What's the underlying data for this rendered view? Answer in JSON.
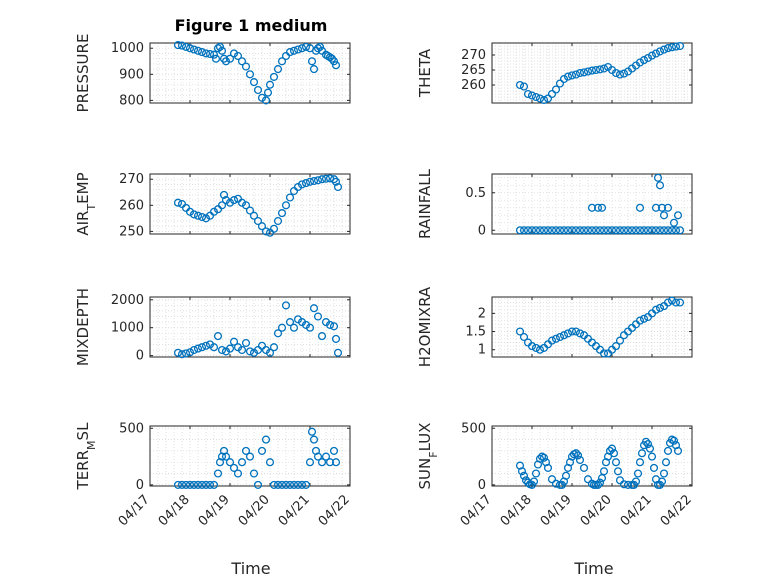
{
  "figure": {
    "title": "Figure 1 medium",
    "marker_color": "#0072BD",
    "xticks": [
      "04/17",
      "04/18",
      "04/19",
      "04/20",
      "04/21",
      "04/22"
    ],
    "xlabel": "Time"
  },
  "chart_data": [
    {
      "type": "scatter",
      "ylabel": "PRESSURE",
      "title": "Figure 1 medium",
      "ylim": [
        790,
        1020
      ],
      "yticks": [
        800,
        900,
        1000
      ],
      "xlim": [
        0,
        5
      ],
      "grid": true,
      "x": [
        0.7,
        0.8,
        0.9,
        1.0,
        1.1,
        1.2,
        1.3,
        1.4,
        1.5,
        1.6,
        1.65,
        1.7,
        1.75,
        1.8,
        1.85,
        1.9,
        2.0,
        2.1,
        2.2,
        2.3,
        2.4,
        2.5,
        2.6,
        2.7,
        2.8,
        2.9,
        2.95,
        3.0,
        3.1,
        3.2,
        3.3,
        3.4,
        3.5,
        3.6,
        3.7,
        3.8,
        3.9,
        4.0,
        4.05,
        4.1,
        4.15,
        4.2,
        4.25,
        4.3,
        4.4,
        4.45,
        4.5,
        4.55,
        4.6,
        4.65
      ],
      "y": [
        1012,
        1010,
        1005,
        1000,
        995,
        990,
        985,
        980,
        978,
        975,
        960,
        1000,
        1005,
        990,
        960,
        950,
        960,
        980,
        970,
        950,
        930,
        900,
        870,
        840,
        810,
        800,
        830,
        860,
        890,
        920,
        950,
        970,
        985,
        990,
        995,
        1000,
        1005,
        1000,
        950,
        920,
        990,
        1000,
        1005,
        990,
        975,
        970,
        965,
        960,
        950,
        935
      ]
    },
    {
      "type": "scatter",
      "ylabel": "THETA",
      "ylim": [
        254,
        274
      ],
      "yticks": [
        260,
        265,
        270
      ],
      "xlim": [
        0,
        5
      ],
      "grid": true,
      "x": [
        0.7,
        0.8,
        0.9,
        1.0,
        1.1,
        1.2,
        1.3,
        1.4,
        1.5,
        1.6,
        1.7,
        1.8,
        1.9,
        2.0,
        2.1,
        2.2,
        2.3,
        2.4,
        2.5,
        2.6,
        2.7,
        2.8,
        2.9,
        3.0,
        3.1,
        3.2,
        3.3,
        3.4,
        3.5,
        3.6,
        3.7,
        3.8,
        3.9,
        4.0,
        4.1,
        4.2,
        4.3,
        4.4,
        4.5,
        4.6,
        4.7
      ],
      "y": [
        260,
        259.5,
        257,
        256.5,
        256,
        255.5,
        255,
        255.5,
        257,
        258.5,
        260.5,
        262,
        262.8,
        263.2,
        263.5,
        264,
        264.2,
        264.5,
        264.8,
        265,
        265.2,
        265.5,
        266,
        265,
        264,
        263.5,
        263.8,
        264.5,
        265.5,
        266.5,
        267.5,
        268.3,
        269,
        269.8,
        270.5,
        271.2,
        271.8,
        272.3,
        272.6,
        272.8,
        273
      ]
    },
    {
      "type": "scatter",
      "ylabel": "AIR_TEMP",
      "ylim": [
        249,
        272
      ],
      "yticks": [
        250,
        260,
        270
      ],
      "xlim": [
        0,
        5
      ],
      "grid": true,
      "x": [
        0.7,
        0.8,
        0.9,
        1.0,
        1.1,
        1.2,
        1.3,
        1.4,
        1.5,
        1.6,
        1.7,
        1.8,
        1.85,
        1.9,
        2.0,
        2.1,
        2.2,
        2.3,
        2.4,
        2.5,
        2.6,
        2.7,
        2.8,
        2.9,
        3.0,
        3.1,
        3.2,
        3.3,
        3.4,
        3.5,
        3.6,
        3.7,
        3.8,
        3.9,
        4.0,
        4.1,
        4.2,
        4.3,
        4.4,
        4.5,
        4.6,
        4.65,
        4.7
      ],
      "y": [
        261,
        260.5,
        259,
        257.5,
        256.5,
        256,
        255.5,
        255,
        256,
        257.5,
        258.5,
        260,
        264,
        262,
        261,
        262,
        262.5,
        261,
        260,
        258,
        256,
        254,
        252,
        250,
        249.5,
        251,
        254,
        257,
        260,
        263,
        265.5,
        267,
        268,
        268.5,
        269,
        269.3,
        269.6,
        270,
        270.2,
        270.3,
        270,
        269,
        267
      ]
    },
    {
      "type": "scatter",
      "ylabel": "RAINFALL",
      "ylim": [
        -0.05,
        0.75
      ],
      "yticks": [
        0,
        0.5
      ],
      "xlim": [
        0,
        5
      ],
      "grid": true,
      "x": [
        0.7,
        0.8,
        0.9,
        1.0,
        1.1,
        1.2,
        1.3,
        1.4,
        1.5,
        1.6,
        1.7,
        1.8,
        1.9,
        2.0,
        2.1,
        2.2,
        2.3,
        2.4,
        2.5,
        2.6,
        2.7,
        2.8,
        2.9,
        3.0,
        3.1,
        3.2,
        3.3,
        3.4,
        3.5,
        3.6,
        3.7,
        3.8,
        3.9,
        4.0,
        4.1,
        4.2,
        4.3,
        4.4,
        4.5,
        4.6,
        4.7,
        2.5,
        2.65,
        2.75,
        3.7,
        4.1,
        4.15,
        4.2,
        4.25,
        4.3,
        4.4,
        4.55,
        4.65
      ],
      "y": [
        0,
        0,
        0,
        0,
        0,
        0,
        0,
        0,
        0,
        0,
        0,
        0,
        0,
        0,
        0,
        0,
        0,
        0,
        0,
        0,
        0,
        0,
        0,
        0,
        0,
        0,
        0,
        0,
        0,
        0,
        0,
        0,
        0,
        0,
        0,
        0,
        0,
        0,
        0,
        0,
        0,
        0.3,
        0.3,
        0.3,
        0.3,
        0.3,
        0.7,
        0.6,
        0.3,
        0.2,
        0.3,
        0.1,
        0.2
      ]
    },
    {
      "type": "scatter",
      "ylabel": "MIXDEPTH",
      "ylim": [
        -50,
        2100
      ],
      "yticks": [
        0,
        1000,
        2000
      ],
      "xlim": [
        0,
        5
      ],
      "grid": true,
      "x": [
        0.7,
        0.8,
        0.9,
        1.0,
        1.1,
        1.2,
        1.3,
        1.4,
        1.5,
        1.6,
        1.7,
        1.8,
        1.9,
        2.0,
        2.1,
        2.2,
        2.3,
        2.4,
        2.5,
        2.6,
        2.7,
        2.8,
        2.9,
        3.0,
        3.1,
        3.2,
        3.3,
        3.4,
        3.5,
        3.6,
        3.7,
        3.8,
        3.9,
        4.0,
        4.1,
        4.2,
        4.3,
        4.4,
        4.5,
        4.6,
        4.65,
        4.7
      ],
      "y": [
        100,
        50,
        80,
        120,
        200,
        250,
        300,
        350,
        400,
        300,
        700,
        200,
        150,
        250,
        500,
        300,
        200,
        450,
        150,
        100,
        200,
        350,
        200,
        100,
        300,
        800,
        1000,
        1800,
        1200,
        1000,
        1300,
        1200,
        1100,
        1000,
        1700,
        1400,
        700,
        1200,
        1100,
        1050,
        600,
        100
      ]
    },
    {
      "type": "scatter",
      "ylabel": "H2OMIXRA",
      "ylim": [
        0.8,
        2.45
      ],
      "yticks": [
        1,
        1.5,
        2
      ],
      "xlim": [
        0,
        5
      ],
      "grid": true,
      "x": [
        0.7,
        0.8,
        0.9,
        1.0,
        1.1,
        1.2,
        1.3,
        1.4,
        1.5,
        1.6,
        1.7,
        1.8,
        1.9,
        2.0,
        2.1,
        2.2,
        2.3,
        2.4,
        2.5,
        2.6,
        2.7,
        2.8,
        2.9,
        3.0,
        3.1,
        3.2,
        3.3,
        3.4,
        3.5,
        3.6,
        3.7,
        3.8,
        3.9,
        4.0,
        4.1,
        4.2,
        4.3,
        4.4,
        4.5,
        4.6,
        4.7
      ],
      "y": [
        1.5,
        1.35,
        1.2,
        1.1,
        1.05,
        1.0,
        1.05,
        1.15,
        1.25,
        1.3,
        1.35,
        1.4,
        1.45,
        1.5,
        1.5,
        1.45,
        1.4,
        1.3,
        1.2,
        1.1,
        1.0,
        0.9,
        0.9,
        1.0,
        1.1,
        1.25,
        1.4,
        1.5,
        1.6,
        1.7,
        1.8,
        1.85,
        1.9,
        2.0,
        2.1,
        2.15,
        2.2,
        2.3,
        2.35,
        2.3,
        2.3
      ]
    },
    {
      "type": "scatter",
      "ylabel": "TERR_MSL",
      "ylim": [
        -10,
        520
      ],
      "yticks": [
        0,
        500
      ],
      "xlim": [
        0,
        5
      ],
      "grid": true,
      "x": [
        0.7,
        0.8,
        0.9,
        1.0,
        1.1,
        1.2,
        1.3,
        1.4,
        1.5,
        1.6,
        1.7,
        1.75,
        1.8,
        1.85,
        1.9,
        2.0,
        2.1,
        2.2,
        2.3,
        2.4,
        2.5,
        2.6,
        2.7,
        2.8,
        2.9,
        3.0,
        3.1,
        3.2,
        3.3,
        3.4,
        3.5,
        3.6,
        3.7,
        3.8,
        3.9,
        4.0,
        4.05,
        4.1,
        4.15,
        4.2,
        4.3,
        4.4,
        4.5,
        4.6,
        4.65
      ],
      "y": [
        0,
        0,
        0,
        0,
        0,
        0,
        0,
        0,
        0,
        0,
        100,
        200,
        250,
        300,
        250,
        200,
        150,
        100,
        200,
        300,
        250,
        100,
        0,
        300,
        400,
        200,
        0,
        0,
        0,
        0,
        0,
        0,
        0,
        0,
        0,
        200,
        470,
        400,
        300,
        250,
        200,
        250,
        200,
        300,
        200
      ]
    },
    {
      "type": "scatter",
      "ylabel": "SUN_FLUX",
      "ylim": [
        -10,
        520
      ],
      "yticks": [
        0,
        500
      ],
      "xlim": [
        0,
        5
      ],
      "grid": true,
      "x": [
        0.7,
        0.75,
        0.8,
        0.85,
        0.9,
        0.95,
        1.0,
        1.05,
        1.1,
        1.15,
        1.2,
        1.25,
        1.3,
        1.35,
        1.4,
        1.5,
        1.6,
        1.7,
        1.75,
        1.8,
        1.85,
        1.9,
        1.95,
        2.0,
        2.05,
        2.1,
        2.15,
        2.2,
        2.3,
        2.4,
        2.5,
        2.55,
        2.6,
        2.65,
        2.7,
        2.75,
        2.8,
        2.85,
        2.9,
        2.95,
        3.0,
        3.05,
        3.1,
        3.15,
        3.2,
        3.3,
        3.4,
        3.5,
        3.55,
        3.6,
        3.65,
        3.7,
        3.75,
        3.8,
        3.85,
        3.9,
        3.95,
        4.0,
        4.05,
        4.1,
        4.15,
        4.2,
        4.25,
        4.3,
        4.35,
        4.4,
        4.45,
        4.5,
        4.55,
        4.6,
        4.65
      ],
      "y": [
        170,
        120,
        80,
        40,
        20,
        5,
        0,
        30,
        100,
        180,
        230,
        250,
        240,
        200,
        150,
        50,
        10,
        0,
        0,
        30,
        80,
        150,
        200,
        250,
        270,
        280,
        260,
        220,
        150,
        50,
        10,
        0,
        0,
        0,
        20,
        60,
        120,
        200,
        250,
        300,
        320,
        280,
        200,
        120,
        40,
        5,
        0,
        0,
        0,
        30,
        100,
        200,
        280,
        350,
        380,
        360,
        320,
        250,
        150,
        50,
        0,
        0,
        30,
        100,
        200,
        300,
        370,
        400,
        390,
        350,
        300
      ]
    }
  ]
}
